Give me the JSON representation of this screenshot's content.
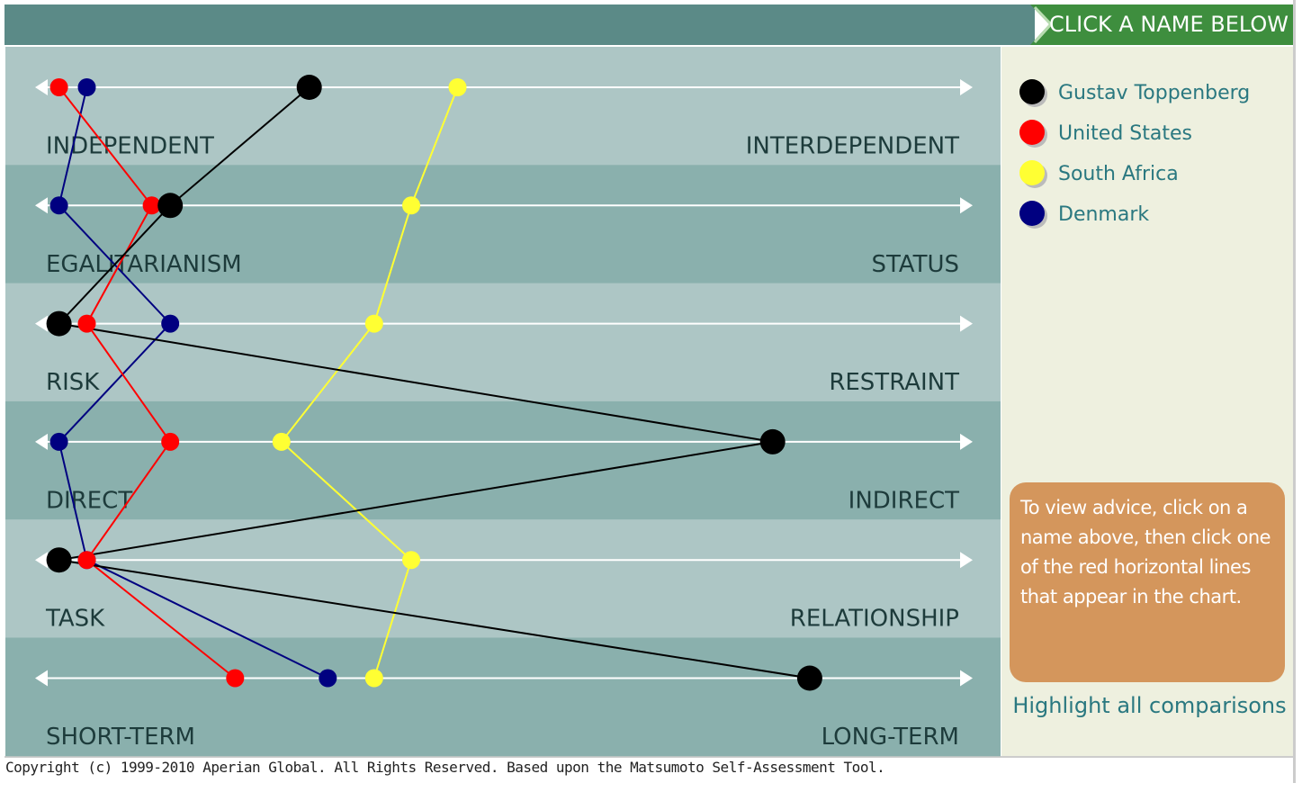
{
  "header": {
    "banner": "CLICK A NAME BELOW"
  },
  "chart_data": {
    "type": "profile",
    "categories": [
      "INDEPENDENT",
      "EGALITARIANISM",
      "RISK",
      "DIRECT",
      "TASK",
      "SHORT-TERM"
    ],
    "right_labels": [
      "INTERDEPENDENT",
      "STATUS",
      "RESTRAINT",
      "INDIRECT",
      "RELATIONSHIP",
      "LONG-TERM"
    ],
    "xlim": [
      0,
      100
    ],
    "series": [
      {
        "name": "South Africa",
        "color": "#ffff33",
        "values": [
          45,
          40,
          36,
          26,
          40,
          36
        ]
      },
      {
        "name": "Denmark",
        "color": "#000080",
        "values": [
          5,
          2,
          14,
          2,
          5,
          31
        ]
      },
      {
        "name": "United States",
        "color": "#ff0000",
        "values": [
          2,
          12,
          5,
          14,
          5,
          21
        ]
      },
      {
        "name": "Gustav Toppenberg",
        "color": "#000000",
        "values": [
          29,
          14,
          2,
          79,
          2,
          83
        ]
      }
    ],
    "legend_order": [
      3,
      2,
      0,
      1
    ]
  },
  "advice": "To view advice, click on a name above, then click one of the red horizontal lines that appear in the chart.",
  "highlight_link": "Highlight all comparisons",
  "footer": "Copyright (c) 1999-2010 Aperian Global. All Rights Reserved. Based upon the Matsumoto Self-Assessment Tool."
}
